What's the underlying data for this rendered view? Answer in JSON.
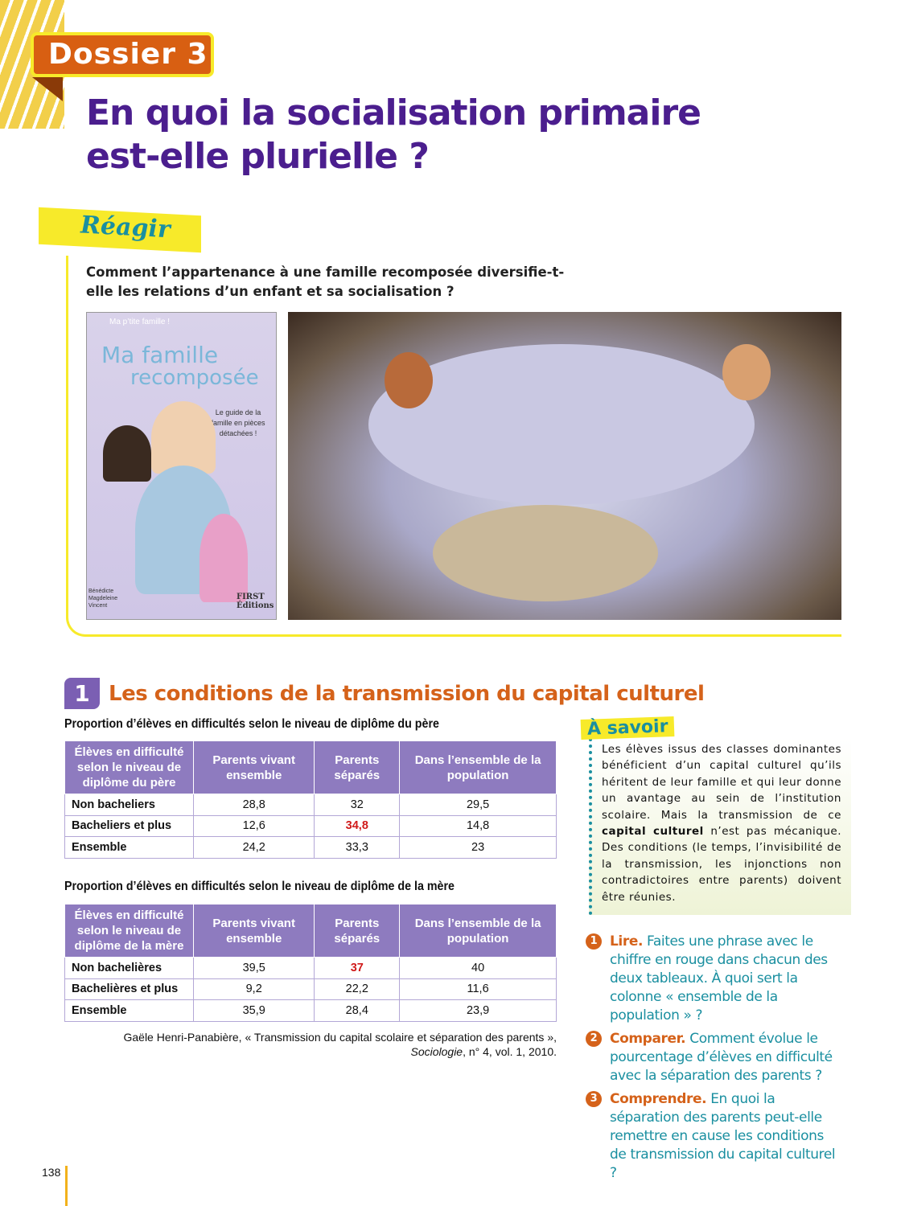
{
  "header": {
    "dossier": "Dossier 3",
    "title_line1": "En quoi la socialisation primaire",
    "title_line2": "est-elle plurielle ?"
  },
  "reagir": {
    "label": "Réagir",
    "question": "Comment l’appartenance à une famille recomposée diversifie-t-elle les relations d’un enfant et sa socialisation ?",
    "book": {
      "series": "Ma p’tite famille !",
      "title1": "Ma famille",
      "title2": "recomposée",
      "subtitle": "Le guide de la famille en pièces détachées !",
      "author": "Bénédicte Magdeleine Vincent",
      "publisher": "FIRST Éditions"
    }
  },
  "section": {
    "number": "1",
    "title": "Les conditions de la transmission du capital culturel"
  },
  "table1": {
    "caption": "Proportion d’élèves en difficultés selon le niveau de diplôme du père",
    "headers": [
      "Élèves en difficulté selon le niveau de diplôme du père",
      "Parents vivant ensemble",
      "Parents séparés",
      "Dans l’ensemble de la population"
    ],
    "rows": [
      [
        "Non bacheliers",
        "28,8",
        "32",
        "29,5"
      ],
      [
        "Bacheliers et plus",
        "12,6",
        "34,8",
        "14,8"
      ],
      [
        "Ensemble",
        "24,2",
        "33,3",
        "23"
      ]
    ]
  },
  "table2": {
    "caption": "Proportion d’élèves en difficultés selon le niveau de diplôme de la mère",
    "headers": [
      "Élèves en difficulté selon le niveau de diplôme de la mère",
      "Parents vivant ensemble",
      "Parents séparés",
      "Dans l’ensemble de la population"
    ],
    "rows": [
      [
        "Non bachelières",
        "39,5",
        "37",
        "40"
      ],
      [
        "Bachelières et plus",
        "9,2",
        "22,2",
        "11,6"
      ],
      [
        "Ensemble",
        "35,9",
        "28,4",
        "23,9"
      ]
    ]
  },
  "highlight_color": "#d01a1a",
  "source": {
    "line1": "Gaële Henri-Panabière, « Transmission du capital scolaire et séparation des parents »,",
    "journal": "Sociologie",
    "line2_rest": ", n° 4, vol. 1, 2010."
  },
  "savoir": {
    "label": "À savoir",
    "text_before": "Les élèves issus des classes dominantes bénéficient d’un capital culturel qu’ils héritent de leur famille et qui leur donne un avantage au sein de l’institution scolaire. Mais la transmission de ce ",
    "bold": "capital culturel",
    "text_after": " n’est pas mécanique. Des conditions (le temps, l’invisibilité de la transmission, les injonctions non contradictoires entre parents) doivent être réunies."
  },
  "questions": [
    {
      "n": "1",
      "verb": "Lire.",
      "text": " Faites une phrase avec le chiffre en rouge dans chacun des deux tableaux. À quoi sert la colonne « ensemble de la population » ?"
    },
    {
      "n": "2",
      "verb": "Comparer.",
      "text": " Comment évolue le pourcentage d’élèves en difficulté avec la séparation des parents ?"
    },
    {
      "n": "3",
      "verb": "Comprendre.",
      "text": " En quoi la séparation des parents peut-elle remettre en cause les conditions de transmission du capital culturel ?"
    }
  ],
  "page_number": "138",
  "colors": {
    "purple": "#4b1e8e",
    "orange": "#d5621a",
    "teal": "#1a8fa0",
    "yellow": "#f7ea2a",
    "table_header": "#8e7bbf"
  }
}
